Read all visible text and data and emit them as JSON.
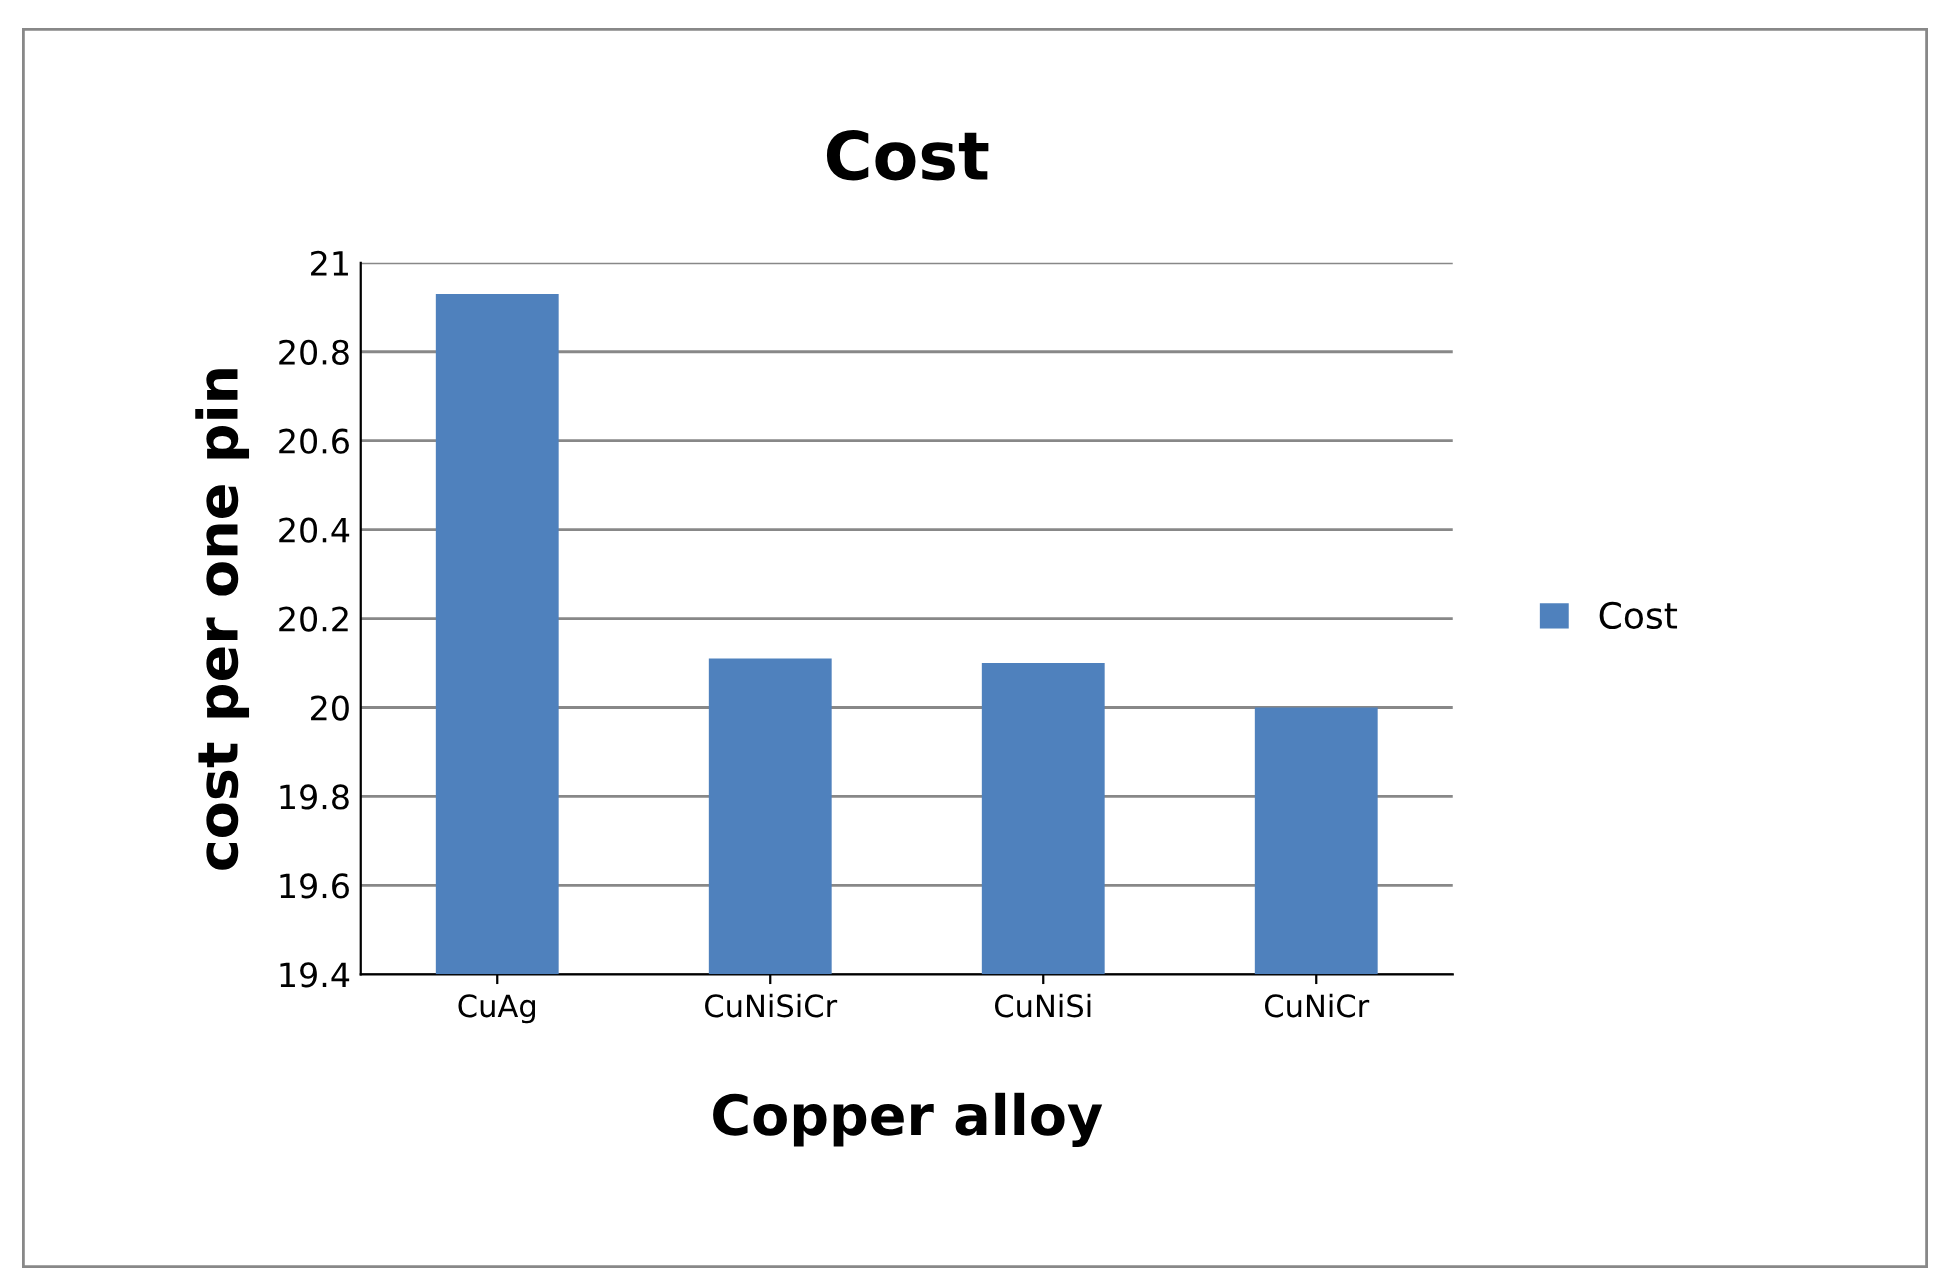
{
  "chart_data": {
    "type": "bar",
    "title": "Cost",
    "xlabel": "Copper alloy",
    "ylabel": "cost per one pin",
    "categories": [
      "CuAg",
      "CuNiSiCr",
      "CuNiSi",
      "CuNiCr"
    ],
    "series": [
      {
        "name": "Cost",
        "color": "#4f81bd",
        "values": [
          20.93,
          20.11,
          20.1,
          20.0
        ]
      }
    ],
    "ylim": [
      19.4,
      21
    ],
    "yticks": [
      {
        "value": 19.4,
        "label": "19.4"
      },
      {
        "value": 19.6,
        "label": "19.6"
      },
      {
        "value": 19.8,
        "label": "19.8"
      },
      {
        "value": 20,
        "label": "20"
      },
      {
        "value": 20.2,
        "label": "20.2"
      },
      {
        "value": 20.4,
        "label": "20.4"
      },
      {
        "value": 20.6,
        "label": "20.6"
      },
      {
        "value": 20.8,
        "label": "20.8"
      },
      {
        "value": 21,
        "label": "21"
      }
    ],
    "grid": "y",
    "legend": "right"
  }
}
